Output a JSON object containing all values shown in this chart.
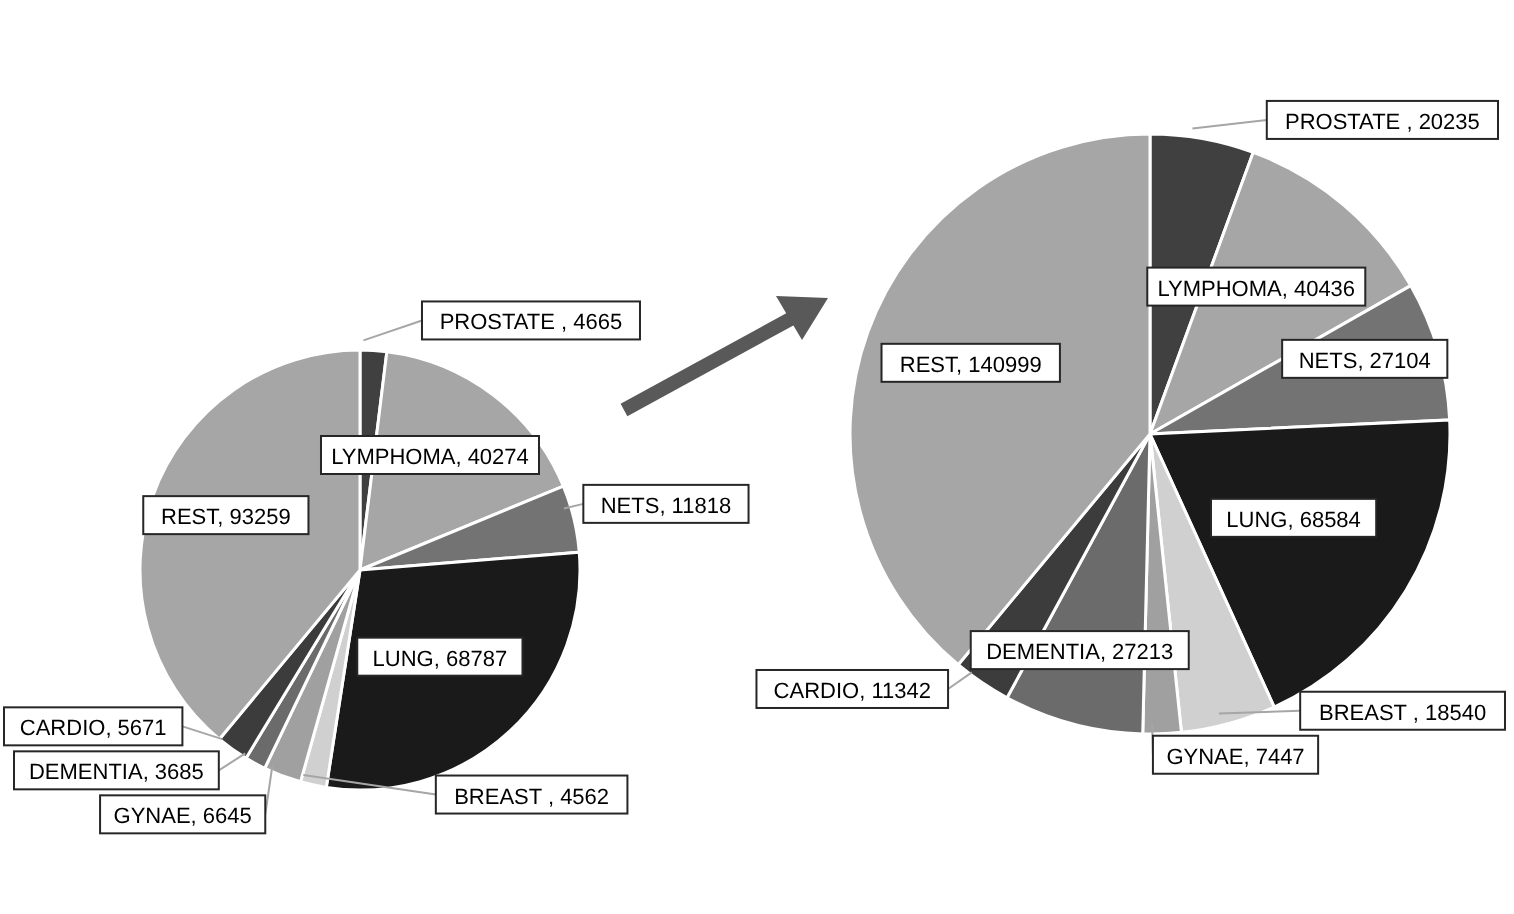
{
  "chart_data": [
    {
      "type": "pie",
      "categories": [
        "PROSTATE ",
        "LYMPHOMA",
        "NETS",
        "LUNG",
        "BREAST ",
        "GYNAE",
        "DEMENTIA",
        "CARDIO",
        "REST"
      ],
      "values": [
        4665,
        40274,
        11818,
        68787,
        4562,
        6645,
        3685,
        5671,
        93259
      ],
      "colors": [
        "#404040",
        "#a6a6a6",
        "#737373",
        "#1a1a1a",
        "#d0d0d0",
        "#a0a0a0",
        "#6b6b6b",
        "#3c3c3c",
        "#a6a6a6"
      ],
      "value_labels": [
        ", 4665",
        ", 40274",
        ", 11818",
        ", 68787",
        ", 4562",
        ", 6645",
        ", 3685",
        ", 5671",
        ", 93259"
      ]
    },
    {
      "type": "pie",
      "categories": [
        "PROSTATE ",
        "LYMPHOMA",
        "NETS",
        "LUNG",
        "BREAST ",
        "GYNAE",
        "DEMENTIA",
        "CARDIO",
        "REST"
      ],
      "values": [
        20235,
        40436,
        27104,
        68584,
        18540,
        7447,
        27213,
        11342,
        140999
      ],
      "colors": [
        "#404040",
        "#a6a6a6",
        "#737373",
        "#1a1a1a",
        "#d0d0d0",
        "#a0a0a0",
        "#6b6b6b",
        "#3c3c3c",
        "#a6a6a6"
      ],
      "value_labels": [
        ", 20235",
        ", 40436",
        ", 27104",
        ", 68584",
        ", 18540",
        ", 7447",
        ", 27213",
        ", 11342",
        ", 140999"
      ]
    }
  ]
}
